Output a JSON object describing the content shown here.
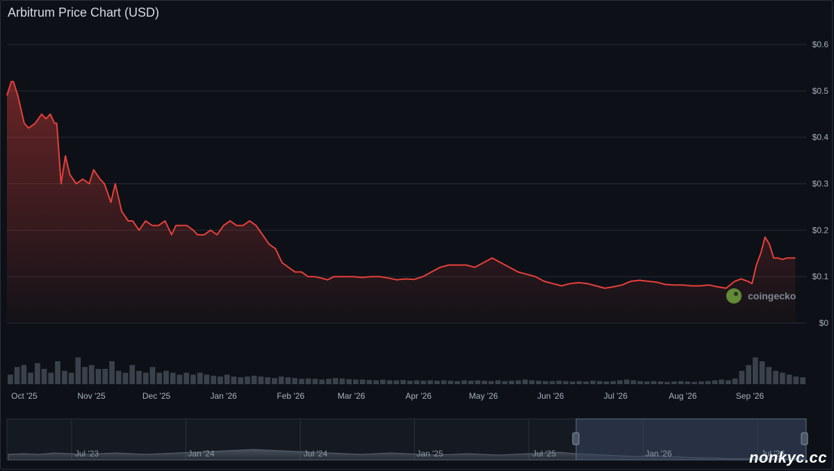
{
  "chart_data": {
    "type": "area",
    "title": "Arbitrum Price Chart (USD)",
    "xlabel": "",
    "ylabel": "",
    "ylim": [
      0,
      0.6
    ],
    "y_ticks": [
      "$0",
      "$0.1",
      "$0.2",
      "$0.3",
      "$0.4",
      "$0.5",
      "$0.6"
    ],
    "y_tick_values": [
      0,
      0.1,
      0.2,
      0.3,
      0.4,
      0.5,
      0.6
    ],
    "xlim": [
      "2025-09-23",
      "2026-09-27"
    ],
    "x_ticks": [
      {
        "label": "Oct '25",
        "date": "2025-10-01"
      },
      {
        "label": "Nov '25",
        "date": "2025-11-01"
      },
      {
        "label": "Dec '25",
        "date": "2025-12-01"
      },
      {
        "label": "Jan '26",
        "date": "2026-01-01"
      },
      {
        "label": "Feb '26",
        "date": "2026-02-01"
      },
      {
        "label": "Mar '26",
        "date": "2026-03-01"
      },
      {
        "label": "Apr '26",
        "date": "2026-04-01"
      },
      {
        "label": "May '26",
        "date": "2026-05-01"
      },
      {
        "label": "Jun '26",
        "date": "2026-06-01"
      },
      {
        "label": "Jul '26",
        "date": "2026-07-01"
      },
      {
        "label": "Aug '26",
        "date": "2026-08-01"
      },
      {
        "label": "Sep '26",
        "date": "2026-09-01"
      }
    ],
    "grid": true,
    "legend": "none",
    "series": [
      {
        "x": [
          "2025-09-23",
          "2025-09-25",
          "2025-09-26",
          "2025-09-28",
          "2025-10-01",
          "2025-10-03",
          "2025-10-06",
          "2025-10-09",
          "2025-10-11",
          "2025-10-13",
          "2025-10-15",
          "2025-10-16",
          "2025-10-18",
          "2025-10-20",
          "2025-10-22",
          "2025-10-25",
          "2025-10-28",
          "2025-10-31",
          "2025-11-02",
          "2025-11-05",
          "2025-11-07",
          "2025-11-10",
          "2025-11-12",
          "2025-11-15",
          "2025-11-18",
          "2025-11-20",
          "2025-11-23",
          "2025-11-26",
          "2025-11-29",
          "2025-12-02",
          "2025-12-05",
          "2025-12-08",
          "2025-12-10",
          "2025-12-12",
          "2025-12-15",
          "2025-12-18",
          "2025-12-20",
          "2025-12-23",
          "2025-12-26",
          "2025-12-29",
          "2026-01-01",
          "2026-01-04",
          "2026-01-07",
          "2026-01-10",
          "2026-01-13",
          "2026-01-16",
          "2026-01-19",
          "2026-01-22",
          "2026-01-25",
          "2026-01-28",
          "2026-01-31",
          "2026-02-03",
          "2026-02-06",
          "2026-02-09",
          "2026-02-12",
          "2026-02-15",
          "2026-02-18",
          "2026-02-21",
          "2026-02-24",
          "2026-02-27",
          "2026-03-02",
          "2026-03-06",
          "2026-03-10",
          "2026-03-14",
          "2026-03-18",
          "2026-03-22",
          "2026-03-26",
          "2026-03-30",
          "2026-04-03",
          "2026-04-07",
          "2026-04-11",
          "2026-04-15",
          "2026-04-19",
          "2026-04-23",
          "2026-04-27",
          "2026-05-01",
          "2026-05-05",
          "2026-05-09",
          "2026-05-13",
          "2026-05-17",
          "2026-05-21",
          "2026-05-25",
          "2026-05-29",
          "2026-06-02",
          "2026-06-06",
          "2026-06-10",
          "2026-06-14",
          "2026-06-18",
          "2026-06-22",
          "2026-06-26",
          "2026-06-30",
          "2026-07-04",
          "2026-07-08",
          "2026-07-12",
          "2026-07-16",
          "2026-07-20",
          "2026-07-24",
          "2026-07-28",
          "2026-08-01",
          "2026-08-05",
          "2026-08-09",
          "2026-08-13",
          "2026-08-17",
          "2026-08-21",
          "2026-08-25",
          "2026-08-28",
          "2026-08-31",
          "2026-09-02",
          "2026-09-04",
          "2026-09-06",
          "2026-09-08",
          "2026-09-10",
          "2026-09-12",
          "2026-09-14",
          "2026-09-16",
          "2026-09-18",
          "2026-09-20",
          "2026-09-22"
        ],
        "y": [
          0.49,
          0.52,
          0.52,
          0.49,
          0.43,
          0.42,
          0.43,
          0.45,
          0.44,
          0.45,
          0.43,
          0.43,
          0.3,
          0.36,
          0.32,
          0.3,
          0.31,
          0.3,
          0.33,
          0.31,
          0.3,
          0.26,
          0.3,
          0.24,
          0.22,
          0.22,
          0.2,
          0.22,
          0.21,
          0.21,
          0.22,
          0.19,
          0.21,
          0.21,
          0.21,
          0.2,
          0.19,
          0.19,
          0.2,
          0.19,
          0.21,
          0.22,
          0.21,
          0.21,
          0.22,
          0.21,
          0.19,
          0.17,
          0.16,
          0.13,
          0.12,
          0.11,
          0.11,
          0.1,
          0.1,
          0.097,
          0.093,
          0.1,
          0.1,
          0.1,
          0.1,
          0.098,
          0.1,
          0.1,
          0.097,
          0.093,
          0.095,
          0.094,
          0.1,
          0.11,
          0.12,
          0.125,
          0.125,
          0.125,
          0.12,
          0.13,
          0.14,
          0.13,
          0.12,
          0.11,
          0.105,
          0.1,
          0.09,
          0.085,
          0.08,
          0.085,
          0.087,
          0.085,
          0.08,
          0.075,
          0.078,
          0.082,
          0.09,
          0.092,
          0.09,
          0.088,
          0.083,
          0.082,
          0.082,
          0.08,
          0.08,
          0.082,
          0.078,
          0.075,
          0.09,
          0.095,
          0.09,
          0.085,
          0.125,
          0.15,
          0.185,
          0.17,
          0.14,
          0.14,
          0.137,
          0.14,
          0.14,
          0.14
        ]
      }
    ],
    "volume_relative": [
      0.25,
      0.45,
      0.5,
      0.3,
      0.55,
      0.4,
      0.3,
      0.6,
      0.35,
      0.3,
      0.7,
      0.45,
      0.5,
      0.4,
      0.4,
      0.6,
      0.35,
      0.3,
      0.5,
      0.35,
      0.3,
      0.45,
      0.3,
      0.35,
      0.3,
      0.25,
      0.3,
      0.25,
      0.3,
      0.25,
      0.22,
      0.2,
      0.25,
      0.2,
      0.18,
      0.2,
      0.22,
      0.2,
      0.18,
      0.16,
      0.2,
      0.18,
      0.16,
      0.14,
      0.15,
      0.14,
      0.12,
      0.14,
      0.16,
      0.15,
      0.13,
      0.12,
      0.12,
      0.11,
      0.1,
      0.12,
      0.1,
      0.1,
      0.11,
      0.09,
      0.1,
      0.09,
      0.1,
      0.09,
      0.1,
      0.09,
      0.08,
      0.1,
      0.09,
      0.1,
      0.09,
      0.08,
      0.1,
      0.08,
      0.09,
      0.1,
      0.12,
      0.1,
      0.09,
      0.08,
      0.08,
      0.09,
      0.08,
      0.07,
      0.08,
      0.07,
      0.09,
      0.08,
      0.07,
      0.08,
      0.1,
      0.12,
      0.1,
      0.08,
      0.07,
      0.08,
      0.07,
      0.06,
      0.07,
      0.08,
      0.07,
      0.06,
      0.07,
      0.08,
      0.1,
      0.12,
      0.1,
      0.15,
      0.35,
      0.5,
      0.7,
      0.6,
      0.45,
      0.35,
      0.3,
      0.25,
      0.2,
      0.18
    ],
    "navigator": {
      "x_ticks": [
        "Jul '23",
        "Jan '24",
        "Jul '24",
        "Jan '25",
        "Jul '25",
        "Jan '26",
        "Jul '26"
      ],
      "selection": [
        "2025-09-23",
        "2026-09-27"
      ]
    }
  },
  "brand": {
    "logo_text": "coingecko",
    "watermark": "nonkyc.cc"
  },
  "colors": {
    "background": "#0d1117",
    "line": "#e8403b",
    "grid": "#262c35"
  }
}
